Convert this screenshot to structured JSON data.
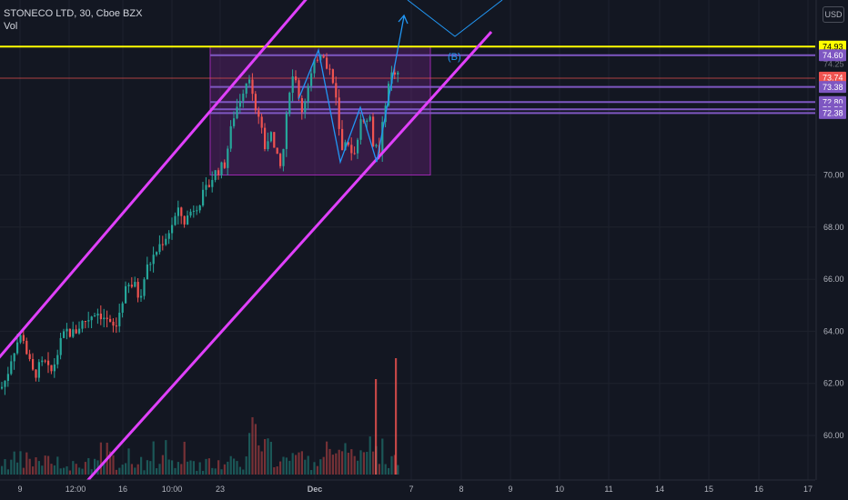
{
  "header": {
    "title": "STONECO LTD, 30, Cboe BZX",
    "indicator": "Vol"
  },
  "currency": "USD",
  "colors": {
    "background": "#131722",
    "grid": "#1e222d",
    "up": "#26a69a",
    "down": "#ef5350",
    "channel": "#e040fb",
    "resistance": "#ffff00",
    "levels": "#7e57c2",
    "box_fill": "rgba(156,39,176,0.25)",
    "box_stroke": "#9c27b0",
    "projection": "#2196f3",
    "axis_text": "#b2b5be"
  },
  "chart_data": {
    "type": "candlestick",
    "title": "STONECO LTD, 30, Cboe BZX",
    "ylim": [
      58.8,
      76.6
    ],
    "y_ticks": [
      60,
      62,
      64,
      66,
      68,
      70
    ],
    "y_tick_labels": [
      "60.00",
      "62.00",
      "64.00",
      "66.00",
      "68.00",
      "70.00"
    ],
    "x_tick_labels": [
      "9",
      "12:00",
      "16",
      "10:00",
      "23",
      "Dec",
      "7",
      "8",
      "9",
      "10",
      "11",
      "14",
      "15",
      "16",
      "17"
    ],
    "resistance": {
      "value": 74.93,
      "label": "74.93"
    },
    "last_price": {
      "value": 73.74,
      "label": "73.74"
    },
    "levels": [
      {
        "value": 74.6,
        "label": "74.60"
      },
      {
        "value": 73.38,
        "label": "73.38"
      },
      {
        "value": 72.8,
        "label": "72.80"
      },
      {
        "value": 72.52,
        "label": "72.52"
      },
      {
        "value": 72.38,
        "label": "72.38"
      }
    ],
    "hidden_labels": [
      "74.25",
      "72.62"
    ],
    "consolidation_box": {
      "price_top": 74.93,
      "price_bottom": 70.0
    },
    "wave_label": "(B)",
    "price_path": [
      [
        0,
        61.8
      ],
      [
        6,
        62.2
      ],
      [
        12,
        63.1
      ],
      [
        18,
        63.6
      ],
      [
        24,
        63.9
      ],
      [
        30,
        62.9
      ],
      [
        36,
        62.3
      ],
      [
        42,
        62.6
      ],
      [
        48,
        62.8
      ],
      [
        54,
        62.3
      ],
      [
        60,
        62.9
      ],
      [
        66,
        63.6
      ],
      [
        72,
        64.0
      ],
      [
        80,
        63.9
      ],
      [
        88,
        64.3
      ],
      [
        96,
        64.5
      ],
      [
        104,
        64.8
      ],
      [
        112,
        64.6
      ],
      [
        120,
        64.2
      ],
      [
        126,
        64.1
      ],
      [
        134,
        65.3
      ],
      [
        140,
        65.7
      ],
      [
        146,
        65.8
      ],
      [
        152,
        65.3
      ],
      [
        160,
        66.4
      ],
      [
        168,
        66.9
      ],
      [
        176,
        67.4
      ],
      [
        184,
        67.8
      ],
      [
        190,
        68.3
      ],
      [
        196,
        68.6
      ],
      [
        202,
        68.2
      ],
      [
        210,
        68.7
      ],
      [
        218,
        69.0
      ],
      [
        226,
        69.4
      ],
      [
        232,
        69.9
      ],
      [
        238,
        70.2
      ],
      [
        245,
        70.3
      ],
      [
        250,
        71.2
      ],
      [
        256,
        72.3
      ],
      [
        262,
        72.9
      ],
      [
        268,
        73.5
      ],
      [
        273,
        73.9
      ],
      [
        278,
        72.8
      ],
      [
        284,
        72.2
      ],
      [
        290,
        71.2
      ],
      [
        296,
        71.6
      ],
      [
        302,
        70.7
      ],
      [
        308,
        70.2
      ],
      [
        314,
        72.2
      ],
      [
        318,
        73.7
      ],
      [
        324,
        73.8
      ],
      [
        330,
        72.4
      ],
      [
        336,
        73.2
      ],
      [
        342,
        73.9
      ],
      [
        348,
        74.6
      ],
      [
        352,
        74.8
      ],
      [
        356,
        74.2
      ],
      [
        362,
        74.1
      ],
      [
        368,
        72.9
      ],
      [
        374,
        70.8
      ],
      [
        380,
        71.1
      ],
      [
        386,
        70.6
      ],
      [
        392,
        71.6
      ],
      [
        398,
        72.2
      ],
      [
        404,
        72.4
      ],
      [
        410,
        71.1
      ],
      [
        416,
        70.7
      ],
      [
        422,
        72.8
      ],
      [
        428,
        73.8
      ],
      [
        434,
        74.1
      ],
      [
        438,
        73.74
      ]
    ],
    "volume": {
      "spike_values": [
        [
          412,
          2.1
        ],
        [
          434,
          3.7
        ]
      ],
      "unit": "relative"
    },
    "annotations": {
      "channel": "rising parallel channel",
      "zigzag": [
        [
          328,
          72.9
        ],
        [
          350,
          74.8
        ],
        [
          374,
          70.5
        ],
        [
          396,
          72.6
        ],
        [
          414,
          70.5
        ]
      ],
      "projection": [
        [
          414,
          70.5
        ],
        [
          436,
          76.3
        ]
      ]
    }
  }
}
